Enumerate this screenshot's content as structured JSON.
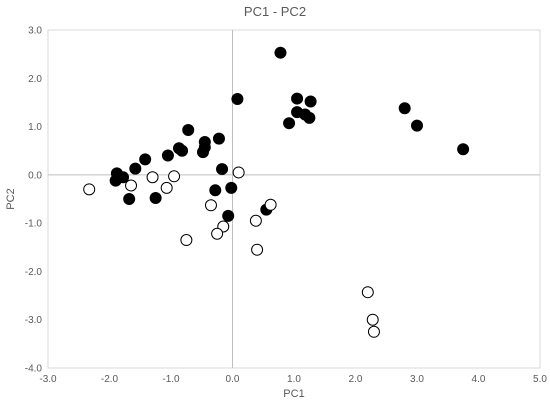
{
  "chart_data": {
    "type": "scatter",
    "title": "PC1 - PC2",
    "xlabel": "PC1",
    "ylabel": "PC2",
    "xlim": [
      -3.0,
      5.0
    ],
    "ylim": [
      -4.0,
      3.0
    ],
    "x_ticks": [
      "-3.0",
      "-2.0",
      "-1.0",
      "0.0",
      "1.0",
      "2.0",
      "3.0",
      "4.0",
      "5.0"
    ],
    "y_ticks": [
      "3.0",
      "2.0",
      "1.0",
      "0.0",
      "-1.0",
      "-2.0",
      "-3.0",
      "-4.0"
    ],
    "grid": false,
    "series": [
      {
        "marker": "filled-circle",
        "color": "#000000",
        "points": [
          [
            0.78,
            2.53
          ],
          [
            0.08,
            1.57
          ],
          [
            1.05,
            1.58
          ],
          [
            1.27,
            1.52
          ],
          [
            1.05,
            1.3
          ],
          [
            1.18,
            1.25
          ],
          [
            1.25,
            1.18
          ],
          [
            0.92,
            1.07
          ],
          [
            2.8,
            1.38
          ],
          [
            3.0,
            1.02
          ],
          [
            3.75,
            0.53
          ],
          [
            -0.72,
            0.93
          ],
          [
            -0.22,
            0.75
          ],
          [
            -0.45,
            0.68
          ],
          [
            -0.45,
            0.57
          ],
          [
            -0.48,
            0.47
          ],
          [
            -0.87,
            0.55
          ],
          [
            -0.82,
            0.5
          ],
          [
            -1.05,
            0.4
          ],
          [
            -1.42,
            0.32
          ],
          [
            -1.58,
            0.13
          ],
          [
            -1.88,
            0.03
          ],
          [
            -1.78,
            -0.05
          ],
          [
            -1.9,
            -0.12
          ],
          [
            -0.17,
            0.12
          ],
          [
            -0.28,
            -0.32
          ],
          [
            -0.02,
            -0.27
          ],
          [
            -1.68,
            -0.5
          ],
          [
            -1.25,
            -0.48
          ],
          [
            -0.07,
            -0.85
          ],
          [
            0.55,
            -0.72
          ]
        ]
      },
      {
        "marker": "open-circle",
        "color": "#000000",
        "points": [
          [
            -2.33,
            -0.3
          ],
          [
            -1.65,
            -0.22
          ],
          [
            -1.3,
            -0.05
          ],
          [
            -1.07,
            -0.27
          ],
          [
            -0.95,
            -0.03
          ],
          [
            0.1,
            0.05
          ],
          [
            -0.35,
            -0.63
          ],
          [
            0.62,
            -0.62
          ],
          [
            0.38,
            -0.95
          ],
          [
            -0.15,
            -1.07
          ],
          [
            -0.25,
            -1.22
          ],
          [
            -0.75,
            -1.35
          ],
          [
            0.4,
            -1.55
          ],
          [
            2.2,
            -2.43
          ],
          [
            2.28,
            -3.0
          ],
          [
            2.3,
            -3.25
          ]
        ]
      }
    ]
  }
}
